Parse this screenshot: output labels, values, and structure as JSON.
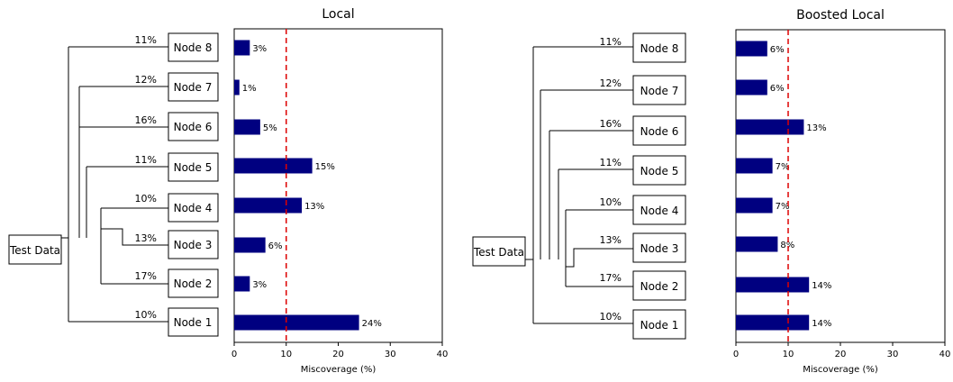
{
  "root_label": "Test Data",
  "bar_color": "#000080",
  "threshold_color": "#dd0000",
  "panels": [
    {
      "title": "Local",
      "nodes": [
        {
          "label": "Node 8",
          "pct": "11%"
        },
        {
          "label": "Node 7",
          "pct": "12%"
        },
        {
          "label": "Node 6",
          "pct": "16%"
        },
        {
          "label": "Node 5",
          "pct": "11%"
        },
        {
          "label": "Node 4",
          "pct": "10%"
        },
        {
          "label": "Node 3",
          "pct": "13%"
        },
        {
          "label": "Node 2",
          "pct": "17%"
        },
        {
          "label": "Node 1",
          "pct": "10%"
        }
      ]
    },
    {
      "title": "Boosted Local",
      "nodes": [
        {
          "label": "Node 8",
          "pct": "11%"
        },
        {
          "label": "Node 7",
          "pct": "12%"
        },
        {
          "label": "Node 6",
          "pct": "16%"
        },
        {
          "label": "Node 5",
          "pct": "11%"
        },
        {
          "label": "Node 4",
          "pct": "10%"
        },
        {
          "label": "Node 3",
          "pct": "13%"
        },
        {
          "label": "Node 2",
          "pct": "17%"
        },
        {
          "label": "Node 1",
          "pct": "10%"
        }
      ]
    }
  ],
  "chart_data": [
    {
      "type": "bar",
      "orientation": "horizontal",
      "title": "Local",
      "xlabel": "Miscoverage (%)",
      "xlim": [
        0,
        40
      ],
      "xticks": [
        0,
        10,
        20,
        30,
        40
      ],
      "threshold": 10,
      "categories": [
        "Node 8",
        "Node 7",
        "Node 6",
        "Node 5",
        "Node 4",
        "Node 3",
        "Node 2",
        "Node 1"
      ],
      "values": [
        3,
        1,
        5,
        15,
        13,
        6,
        3,
        24
      ],
      "value_labels": [
        "3%",
        "1%",
        "5%",
        "15%",
        "13%",
        "6%",
        "3%",
        "24%"
      ]
    },
    {
      "type": "bar",
      "orientation": "horizontal",
      "title": "Boosted Local",
      "xlabel": "Miscoverage (%)",
      "xlim": [
        0,
        40
      ],
      "xticks": [
        0,
        10,
        20,
        30,
        40
      ],
      "threshold": 10,
      "categories": [
        "Node 8",
        "Node 7",
        "Node 6",
        "Node 5",
        "Node 4",
        "Node 3",
        "Node 2",
        "Node 1"
      ],
      "values": [
        6,
        6,
        13,
        7,
        7,
        8,
        14,
        14
      ],
      "value_labels": [
        "6%",
        "6%",
        "13%",
        "7%",
        "7%",
        "8%",
        "14%",
        "14%"
      ]
    }
  ]
}
